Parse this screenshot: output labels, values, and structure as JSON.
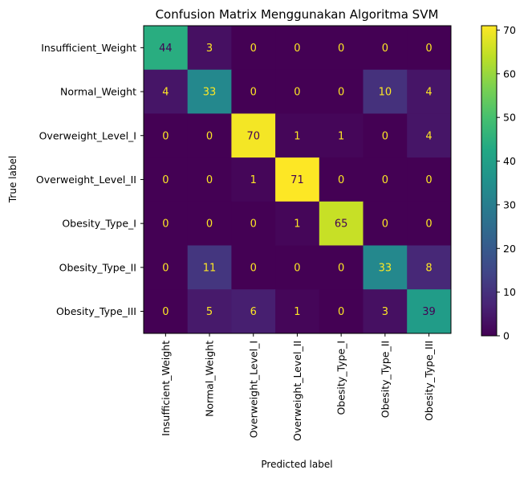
{
  "chart_data": {
    "type": "heatmap",
    "title": "Confusion Matrix Menggunakan Algoritma SVM",
    "xlabel": "Predicted label",
    "ylabel": "True label",
    "labels": [
      "Insufficient_Weight",
      "Normal_Weight",
      "Overweight_Level_I",
      "Overweight_Level_II",
      "Obesity_Type_I",
      "Obesity_Type_II",
      "Obesity_Type_III"
    ],
    "matrix": [
      [
        44,
        3,
        0,
        0,
        0,
        0,
        0
      ],
      [
        4,
        33,
        0,
        0,
        0,
        10,
        4
      ],
      [
        0,
        0,
        70,
        1,
        1,
        0,
        4
      ],
      [
        0,
        0,
        1,
        71,
        0,
        0,
        0
      ],
      [
        0,
        0,
        0,
        1,
        65,
        0,
        0
      ],
      [
        0,
        11,
        0,
        0,
        0,
        33,
        8
      ],
      [
        0,
        5,
        6,
        1,
        0,
        3,
        39
      ]
    ],
    "colormap": "viridis",
    "vmin": 0,
    "vmax": 71,
    "colorbar_ticks": [
      0,
      10,
      20,
      30,
      40,
      50,
      60,
      70
    ]
  }
}
